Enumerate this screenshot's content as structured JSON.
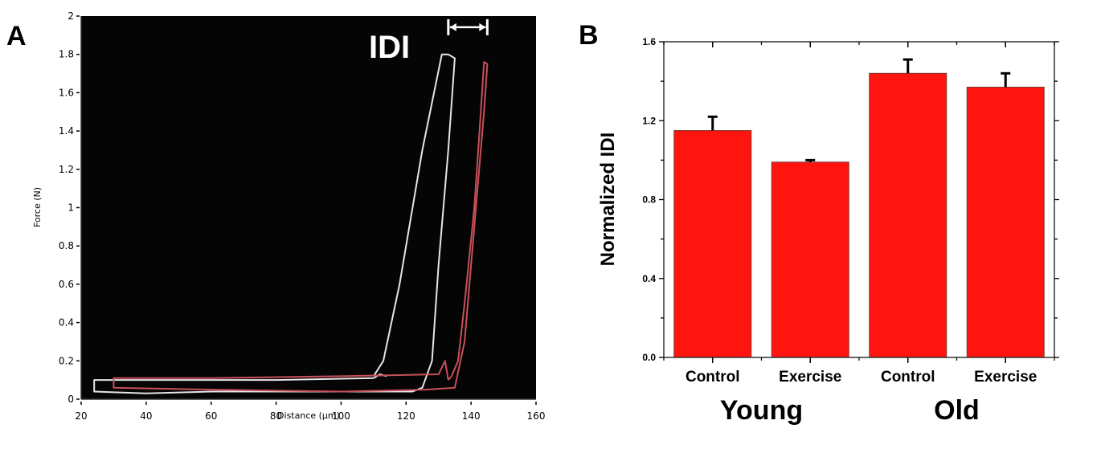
{
  "chart_data": [
    {
      "panel": "A",
      "type": "line",
      "title": "",
      "xlabel": "Distance (µm)",
      "ylabel": "Force (N)",
      "xlim": [
        20,
        160
      ],
      "ylim": [
        0,
        2
      ],
      "xticks": [
        "20",
        "40",
        "60",
        "80",
        "100",
        "120",
        "140",
        "160"
      ],
      "yticks": [
        "0",
        "0.2",
        "0.4",
        "0.6",
        "0.8",
        "1",
        "1.2",
        "1.4",
        "1.6",
        "1.8",
        "2"
      ],
      "background": "#050505",
      "annotation": {
        "text": "IDI",
        "arrow_from_x": 133,
        "arrow_to_x": 145,
        "y": 1.95
      },
      "series": [
        {
          "name": "trace-white",
          "color": "#e6e6e6",
          "points": [
            [
              114,
              0.12
            ],
            [
              112,
              0.13
            ],
            [
              110,
              0.11
            ],
            [
              80,
              0.1
            ],
            [
              50,
              0.1
            ],
            [
              30,
              0.1
            ],
            [
              24,
              0.1
            ],
            [
              24,
              0.04
            ],
            [
              40,
              0.03
            ],
            [
              60,
              0.04
            ],
            [
              80,
              0.04
            ],
            [
              122,
              0.04
            ],
            [
              125,
              0.06
            ],
            [
              128,
              0.2
            ],
            [
              130,
              0.7
            ],
            [
              133,
              1.3
            ],
            [
              135,
              1.78
            ],
            [
              133,
              1.8
            ],
            [
              131,
              1.8
            ],
            [
              125,
              1.3
            ],
            [
              118,
              0.6
            ],
            [
              113,
              0.2
            ],
            [
              110,
              0.12
            ]
          ]
        },
        {
          "name": "trace-red",
          "color": "#c8505a",
          "points": [
            [
              133,
              0.1
            ],
            [
              132,
              0.2
            ],
            [
              130,
              0.13
            ],
            [
              100,
              0.12
            ],
            [
              60,
              0.11
            ],
            [
              30,
              0.11
            ],
            [
              30,
              0.06
            ],
            [
              60,
              0.05
            ],
            [
              100,
              0.04
            ],
            [
              126,
              0.05
            ],
            [
              135,
              0.06
            ],
            [
              138,
              0.3
            ],
            [
              141,
              0.9
            ],
            [
              144,
              1.5
            ],
            [
              145,
              1.75
            ],
            [
              144,
              1.76
            ],
            [
              143,
              1.5
            ],
            [
              141,
              1.0
            ],
            [
              138,
              0.5
            ],
            [
              136,
              0.2
            ],
            [
              134,
              0.12
            ],
            [
              133,
              0.1
            ]
          ]
        }
      ]
    },
    {
      "panel": "B",
      "type": "bar",
      "title": "",
      "xlabel": "",
      "ylabel": "Normalized IDI",
      "ylim": [
        0,
        1.6
      ],
      "yticks": [
        "0.0",
        "0.4",
        "0.8",
        "1.2",
        "1.6"
      ],
      "yminor_step": 0.2,
      "categories": [
        "Control",
        "Exercise",
        "Control",
        "Exercise"
      ],
      "groups": [
        {
          "label": "Young",
          "categories": [
            0,
            1
          ]
        },
        {
          "label": "Old",
          "categories": [
            2,
            3
          ]
        }
      ],
      "values": [
        1.15,
        0.99,
        1.44,
        1.37
      ],
      "errors": [
        0.07,
        0.01,
        0.07,
        0.07
      ],
      "bar_color": "#ff1410"
    }
  ],
  "panel_labels": {
    "a": "A",
    "b": "B"
  }
}
